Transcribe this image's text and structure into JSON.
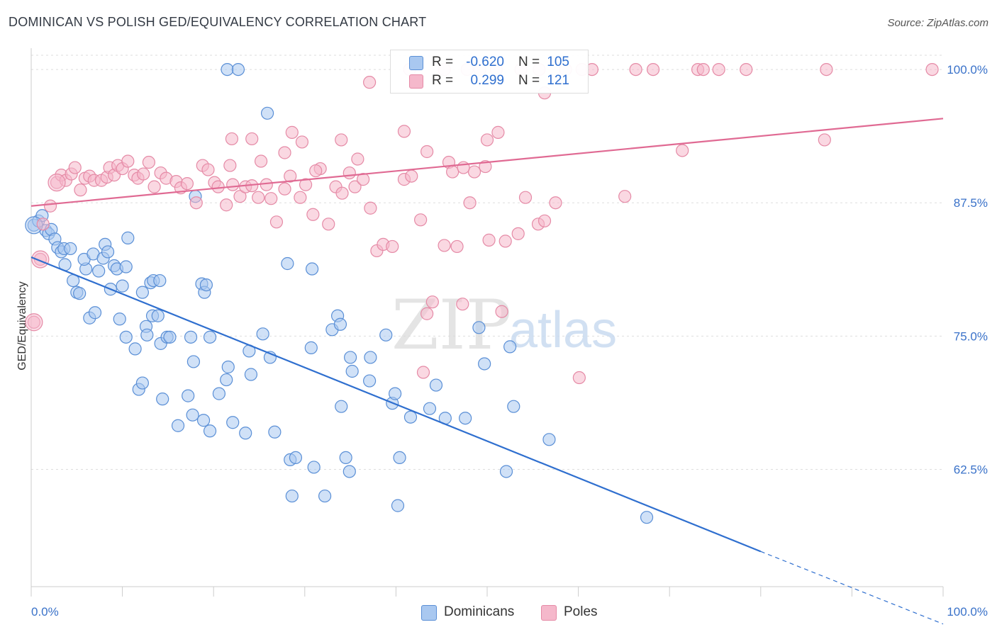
{
  "header": {
    "title": "DOMINICAN VS POLISH GED/EQUIVALENCY CORRELATION CHART",
    "source": "Source: ZipAtlas.com"
  },
  "watermark": {
    "zip": "ZIP",
    "atlas": "atlas"
  },
  "legend_stats": [
    {
      "r_label": "R = ",
      "r_value": "-0.620",
      "n_label": "N = ",
      "n_value": "105",
      "color": "#a9c8f0"
    },
    {
      "r_label": "R = ",
      "r_value": "0.299",
      "n_label": "N = ",
      "n_value": "121",
      "color": "#f5b8cb"
    }
  ],
  "legend_series": [
    {
      "label": "Dominicans",
      "color": "#a9c8f0"
    },
    {
      "label": "Poles",
      "color": "#f5b8cb"
    }
  ],
  "colors": {
    "blue_fill": "#a9c8f0",
    "blue_stroke": "#5a8fd6",
    "blue_line": "#2f6fcf",
    "pink_fill": "#f5b8cb",
    "pink_stroke": "#e58aa6",
    "pink_line": "#e06a93",
    "axis_text": "#3a72c9",
    "grid": "#dddddd"
  },
  "chart_data": {
    "type": "scatter",
    "title": "DOMINICAN VS POLISH GED/EQUIVALENCY CORRELATION CHART",
    "xlabel": "",
    "ylabel": "GED/Equivalency",
    "xlim": [
      0,
      100
    ],
    "ylim": [
      51.5,
      102
    ],
    "x_tick_labels": [
      "0.0%",
      "100.0%"
    ],
    "y_ticks": [
      100,
      87.5,
      75,
      62.5
    ],
    "y_tick_labels": [
      "100.0%",
      "87.5%",
      "75.0%",
      "62.5%"
    ],
    "grid": true,
    "legend_position": "bottom",
    "series": [
      {
        "name": "Dominicans",
        "r": -0.62,
        "n": 105,
        "trend": {
          "x_start": 0,
          "y_start": 82.4,
          "x_end": 80,
          "y_end": 54.8,
          "dashed_to_x": 100,
          "dashed_to_y": 48.0
        },
        "points": [
          [
            0.3,
            85.4
          ],
          [
            0.8,
            85.8
          ],
          [
            1.2,
            86.3
          ],
          [
            1.6,
            84.9
          ],
          [
            1.9,
            84.6
          ],
          [
            2.2,
            85.0
          ],
          [
            2.6,
            84.1
          ],
          [
            2.9,
            83.3
          ],
          [
            3.3,
            82.9
          ],
          [
            3.6,
            83.2
          ],
          [
            4.3,
            83.2
          ],
          [
            3.7,
            81.7
          ],
          [
            4.6,
            80.2
          ],
          [
            5.0,
            79.1
          ],
          [
            5.3,
            79.0
          ],
          [
            6.0,
            81.3
          ],
          [
            5.8,
            82.2
          ],
          [
            6.8,
            82.7
          ],
          [
            7.4,
            81.1
          ],
          [
            7.9,
            82.3
          ],
          [
            8.1,
            83.6
          ],
          [
            8.4,
            82.9
          ],
          [
            8.7,
            79.4
          ],
          [
            9.1,
            81.6
          ],
          [
            9.4,
            81.3
          ],
          [
            10.4,
            81.5
          ],
          [
            10.6,
            84.2
          ],
          [
            10.0,
            79.7
          ],
          [
            12.2,
            79.1
          ],
          [
            13.1,
            80.0
          ],
          [
            13.4,
            80.2
          ],
          [
            14.1,
            80.2
          ],
          [
            18.7,
            79.9
          ],
          [
            19.0,
            79.1
          ],
          [
            9.7,
            76.6
          ],
          [
            6.4,
            76.7
          ],
          [
            7.0,
            77.2
          ],
          [
            10.4,
            74.9
          ],
          [
            11.4,
            73.8
          ],
          [
            12.6,
            75.9
          ],
          [
            12.7,
            75.1
          ],
          [
            13.3,
            76.9
          ],
          [
            13.9,
            76.9
          ],
          [
            14.2,
            74.3
          ],
          [
            14.9,
            74.9
          ],
          [
            15.2,
            74.9
          ],
          [
            17.5,
            74.9
          ],
          [
            19.6,
            74.9
          ],
          [
            21.6,
            72.1
          ],
          [
            23.9,
            73.6
          ],
          [
            25.4,
            75.2
          ],
          [
            26.2,
            73.0
          ],
          [
            30.7,
            73.9
          ],
          [
            33.0,
            75.6
          ],
          [
            33.6,
            76.9
          ],
          [
            33.9,
            76.1
          ],
          [
            37.2,
            73.0
          ],
          [
            38.9,
            75.1
          ],
          [
            30.8,
            81.3
          ],
          [
            28.1,
            81.8
          ],
          [
            17.8,
            72.6
          ],
          [
            21.4,
            70.9
          ],
          [
            11.8,
            70.0
          ],
          [
            12.2,
            70.6
          ],
          [
            14.4,
            69.1
          ],
          [
            17.2,
            69.4
          ],
          [
            20.6,
            69.6
          ],
          [
            17.7,
            67.6
          ],
          [
            18.9,
            67.1
          ],
          [
            19.6,
            66.1
          ],
          [
            16.1,
            66.6
          ],
          [
            22.1,
            66.9
          ],
          [
            23.5,
            65.9
          ],
          [
            26.7,
            66.0
          ],
          [
            24.1,
            71.4
          ],
          [
            35.2,
            71.7
          ],
          [
            35.0,
            73.0
          ],
          [
            37.1,
            70.8
          ],
          [
            39.6,
            68.7
          ],
          [
            39.9,
            69.6
          ],
          [
            34.0,
            68.4
          ],
          [
            41.6,
            67.4
          ],
          [
            43.7,
            68.2
          ],
          [
            44.4,
            70.4
          ],
          [
            45.4,
            67.3
          ],
          [
            47.6,
            67.3
          ],
          [
            49.7,
            72.4
          ],
          [
            49.1,
            75.8
          ],
          [
            52.5,
            74.0
          ],
          [
            52.9,
            68.4
          ],
          [
            56.8,
            65.3
          ],
          [
            28.4,
            63.4
          ],
          [
            29.0,
            63.6
          ],
          [
            31.0,
            62.7
          ],
          [
            34.5,
            63.6
          ],
          [
            34.9,
            62.3
          ],
          [
            40.4,
            63.6
          ],
          [
            52.1,
            62.3
          ],
          [
            28.6,
            60.0
          ],
          [
            32.2,
            60.0
          ],
          [
            40.2,
            59.1
          ],
          [
            67.5,
            58.0
          ],
          [
            21.5,
            100.0
          ],
          [
            22.7,
            100.0
          ],
          [
            25.9,
            95.9
          ],
          [
            18.0,
            88.1
          ],
          [
            19.2,
            79.8
          ]
        ]
      },
      {
        "name": "Poles",
        "r": 0.299,
        "n": 121,
        "trend": {
          "x_start": 0,
          "y_start": 87.2,
          "x_end": 100,
          "y_end": 95.4
        },
        "points": [
          [
            0.3,
            76.3
          ],
          [
            1.0,
            82.2
          ],
          [
            1.3,
            85.5
          ],
          [
            2.1,
            87.2
          ],
          [
            2.8,
            89.4
          ],
          [
            3.3,
            90.1
          ],
          [
            3.8,
            89.6
          ],
          [
            4.4,
            90.2
          ],
          [
            4.8,
            90.8
          ],
          [
            5.4,
            88.7
          ],
          [
            5.9,
            89.8
          ],
          [
            6.4,
            90.0
          ],
          [
            6.9,
            89.6
          ],
          [
            7.7,
            89.6
          ],
          [
            8.3,
            89.9
          ],
          [
            8.6,
            90.8
          ],
          [
            9.1,
            90.1
          ],
          [
            9.5,
            91.0
          ],
          [
            10.0,
            90.7
          ],
          [
            10.6,
            91.4
          ],
          [
            11.3,
            90.1
          ],
          [
            11.7,
            89.8
          ],
          [
            12.3,
            90.2
          ],
          [
            12.9,
            91.3
          ],
          [
            13.5,
            89.0
          ],
          [
            14.2,
            90.3
          ],
          [
            14.8,
            89.8
          ],
          [
            15.9,
            89.5
          ],
          [
            16.4,
            88.9
          ],
          [
            17.1,
            89.3
          ],
          [
            18.1,
            87.5
          ],
          [
            18.8,
            91.0
          ],
          [
            19.4,
            90.6
          ],
          [
            20.1,
            89.4
          ],
          [
            20.5,
            89.0
          ],
          [
            21.4,
            87.3
          ],
          [
            22.1,
            89.2
          ],
          [
            22.9,
            88.1
          ],
          [
            23.5,
            89.0
          ],
          [
            24.2,
            89.1
          ],
          [
            24.9,
            88.0
          ],
          [
            25.8,
            89.2
          ],
          [
            26.3,
            87.9
          ],
          [
            26.9,
            85.7
          ],
          [
            27.8,
            88.8
          ],
          [
            28.4,
            90.0
          ],
          [
            29.5,
            88.0
          ],
          [
            30.1,
            89.2
          ],
          [
            30.9,
            86.4
          ],
          [
            31.7,
            90.7
          ],
          [
            32.6,
            85.5
          ],
          [
            33.4,
            89.0
          ],
          [
            34.1,
            88.4
          ],
          [
            34.9,
            90.3
          ],
          [
            35.5,
            89.0
          ],
          [
            36.4,
            89.7
          ],
          [
            37.2,
            87.0
          ],
          [
            37.9,
            83.0
          ],
          [
            38.6,
            83.6
          ],
          [
            39.6,
            83.4
          ],
          [
            40.9,
            89.7
          ],
          [
            41.7,
            90.0
          ],
          [
            42.7,
            85.9
          ],
          [
            43.4,
            77.1
          ],
          [
            44.0,
            78.2
          ],
          [
            45.3,
            83.5
          ],
          [
            46.7,
            83.4
          ],
          [
            47.3,
            78.0
          ],
          [
            48.1,
            87.5
          ],
          [
            48.6,
            90.4
          ],
          [
            49.8,
            90.9
          ],
          [
            50.2,
            84.0
          ],
          [
            52.0,
            83.9
          ],
          [
            53.4,
            84.6
          ],
          [
            54.2,
            88.0
          ],
          [
            55.6,
            85.5
          ],
          [
            56.3,
            85.8
          ],
          [
            57.5,
            87.5
          ],
          [
            21.8,
            91.0
          ],
          [
            25.2,
            91.4
          ],
          [
            24.2,
            93.5
          ],
          [
            22.0,
            93.5
          ],
          [
            27.8,
            92.2
          ],
          [
            28.6,
            94.1
          ],
          [
            29.7,
            93.2
          ],
          [
            31.2,
            90.5
          ],
          [
            34.0,
            93.4
          ],
          [
            35.8,
            91.6
          ],
          [
            40.9,
            94.2
          ],
          [
            43.4,
            92.3
          ],
          [
            45.8,
            91.3
          ],
          [
            46.2,
            90.4
          ],
          [
            47.4,
            90.8
          ],
          [
            50.0,
            93.4
          ],
          [
            51.2,
            94.1
          ],
          [
            56.3,
            97.8
          ],
          [
            45.3,
            100.0
          ],
          [
            47.8,
            100.0
          ],
          [
            49.2,
            100.0
          ],
          [
            51.0,
            100.0
          ],
          [
            53.7,
            100.0
          ],
          [
            55.7,
            100.0
          ],
          [
            58.6,
            100.0
          ],
          [
            60.4,
            100.0
          ],
          [
            61.5,
            100.0
          ],
          [
            66.3,
            100.0
          ],
          [
            68.2,
            100.0
          ],
          [
            73.1,
            100.0
          ],
          [
            73.7,
            100.0
          ],
          [
            75.4,
            100.0
          ],
          [
            78.4,
            100.0
          ],
          [
            87.2,
            100.0
          ],
          [
            98.8,
            100.0
          ],
          [
            71.4,
            92.4
          ],
          [
            87.0,
            93.4
          ],
          [
            65.1,
            88.1
          ],
          [
            41.5,
            100.0
          ],
          [
            37.1,
            98.8
          ],
          [
            43.0,
            71.6
          ],
          [
            60.1,
            71.1
          ],
          [
            51.6,
            77.3
          ]
        ]
      }
    ]
  }
}
